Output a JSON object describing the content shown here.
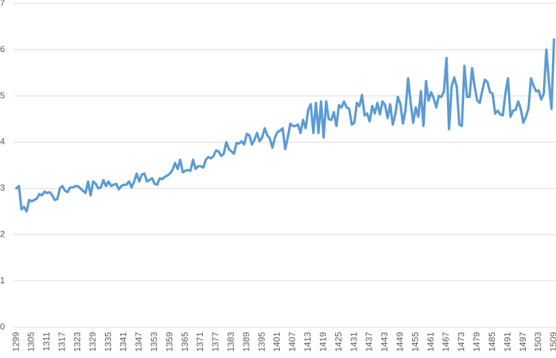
{
  "chart_data": {
    "type": "line",
    "categories": [
      1299,
      null,
      null,
      null,
      null,
      null,
      1305,
      null,
      null,
      null,
      null,
      null,
      1311,
      null,
      null,
      null,
      null,
      null,
      1317,
      null,
      null,
      null,
      null,
      null,
      1323,
      null,
      null,
      null,
      null,
      null,
      1329,
      null,
      null,
      null,
      null,
      null,
      1335,
      null,
      null,
      null,
      null,
      null,
      1341,
      null,
      null,
      null,
      null,
      null,
      1347,
      null,
      null,
      null,
      null,
      null,
      1353,
      null,
      null,
      null,
      null,
      null,
      1359,
      null,
      null,
      null,
      null,
      null,
      1365,
      null,
      null,
      null,
      null,
      null,
      1371,
      null,
      null,
      null,
      null,
      null,
      1377,
      null,
      null,
      null,
      null,
      null,
      1383,
      null,
      null,
      null,
      null,
      null,
      1389,
      null,
      null,
      null,
      null,
      null,
      1395,
      null,
      null,
      null,
      null,
      null,
      1401,
      null,
      null,
      null,
      null,
      null,
      1407,
      null,
      null,
      null,
      null,
      null,
      1413,
      null,
      null,
      null,
      null,
      null,
      1419,
      null,
      null,
      null,
      null,
      null,
      1425,
      null,
      null,
      null,
      null,
      null,
      1431,
      null,
      null,
      null,
      null,
      null,
      1437,
      null,
      null,
      null,
      null,
      null,
      1443,
      null,
      null,
      null,
      null,
      null,
      1449,
      null,
      null,
      null,
      null,
      null,
      1455,
      null,
      null,
      null,
      null,
      null,
      1461,
      null,
      null,
      null,
      null,
      null,
      1467,
      null,
      null,
      null,
      null,
      null,
      1473,
      null,
      null,
      null,
      null,
      null,
      1479,
      null,
      null,
      null,
      null,
      null,
      1485,
      null,
      null,
      null,
      null,
      null,
      1491,
      null,
      null,
      null,
      null,
      null,
      1497,
      null,
      null,
      null,
      null,
      null,
      1503,
      null,
      null,
      null,
      null,
      null,
      1509
    ],
    "values": [
      3.0,
      3.05,
      2.55,
      2.6,
      2.5,
      2.75,
      2.72,
      2.75,
      2.78,
      2.88,
      2.85,
      2.93,
      2.9,
      2.92,
      2.85,
      2.75,
      2.77,
      3.0,
      3.05,
      2.95,
      2.92,
      3.02,
      3.02,
      3.05,
      3.05,
      3.0,
      2.95,
      2.9,
      3.15,
      2.85,
      3.15,
      3.1,
      3.0,
      3.02,
      3.18,
      3.05,
      3.15,
      3.05,
      3.08,
      3.1,
      2.98,
      3.05,
      3.08,
      3.08,
      3.15,
      3.02,
      3.15,
      3.32,
      3.15,
      3.3,
      3.32,
      3.15,
      3.18,
      3.22,
      3.1,
      3.08,
      3.22,
      3.2,
      3.25,
      3.28,
      3.32,
      3.4,
      3.55,
      3.42,
      3.62,
      3.35,
      3.38,
      3.4,
      3.38,
      3.62,
      3.42,
      3.48,
      3.48,
      3.45,
      3.62,
      3.68,
      3.65,
      3.7,
      3.82,
      3.8,
      3.7,
      3.75,
      4.0,
      3.85,
      3.8,
      3.75,
      3.98,
      3.97,
      4.02,
      3.95,
      4.18,
      4.15,
      3.95,
      4.05,
      4.2,
      4.02,
      4.1,
      4.3,
      4.15,
      4.08,
      3.88,
      4.1,
      4.22,
      4.25,
      4.3,
      3.85,
      4.1,
      4.4,
      4.35,
      4.35,
      4.38,
      4.2,
      4.48,
      4.3,
      4.7,
      4.82,
      4.2,
      4.85,
      4.2,
      4.88,
      4.1,
      4.88,
      4.5,
      4.48,
      4.65,
      4.35,
      4.8,
      4.75,
      4.88,
      4.75,
      4.72,
      4.38,
      4.42,
      4.85,
      4.78,
      5.02,
      4.58,
      4.62,
      4.45,
      4.78,
      4.62,
      4.85,
      4.6,
      4.88,
      4.8,
      4.52,
      4.82,
      4.38,
      4.6,
      4.98,
      4.82,
      4.4,
      4.7,
      5.38,
      4.85,
      4.42,
      4.75,
      4.55,
      5.1,
      4.35,
      5.32,
      4.9,
      5.08,
      4.95,
      4.75,
      5.0,
      4.98,
      5.1,
      5.82,
      4.28,
      5.2,
      5.4,
      5.2,
      4.38,
      4.35,
      5.65,
      4.98,
      4.98,
      5.6,
      5.2,
      4.9,
      4.85,
      5.12,
      5.35,
      5.3,
      5.08,
      5.05,
      4.62,
      4.68,
      4.6,
      4.58,
      5.05,
      5.38,
      4.55,
      4.68,
      4.7,
      4.88,
      4.72,
      4.42,
      4.55,
      4.72,
      5.38,
      5.22,
      5.1,
      5.12,
      4.92,
      5.05,
      6.0,
      5.3,
      4.72,
      6.22
    ],
    "color": "#5b9bd5",
    "ylim": [
      0,
      7
    ],
    "yticks": [
      0,
      1,
      2,
      3,
      4,
      5,
      6,
      7
    ],
    "grid": true
  }
}
